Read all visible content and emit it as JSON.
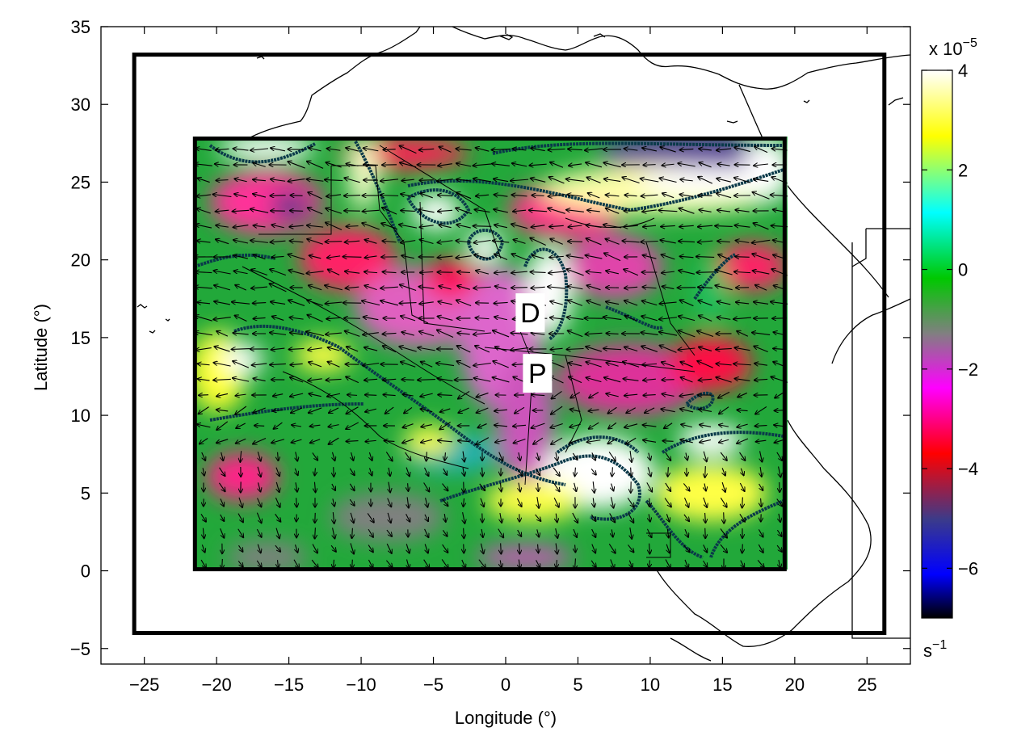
{
  "chart_data": {
    "type": "heatmap",
    "xlabel": "Longitude (°)",
    "ylabel": "Latitude (°)",
    "xlim": [
      -28,
      28
    ],
    "ylim": [
      -6,
      35
    ],
    "xticks": [
      -25,
      -20,
      -15,
      -10,
      -5,
      0,
      5,
      10,
      15,
      20,
      25
    ],
    "yticks": [
      -5,
      0,
      5,
      10,
      15,
      20,
      25,
      30,
      35
    ],
    "outer_domain": {
      "lon": [
        -25.7,
        26.2
      ],
      "lat": [
        -4,
        33.2
      ]
    },
    "inner_domain": {
      "lon": [
        -21.5,
        19.3
      ],
      "lat": [
        0.1,
        27.8
      ]
    },
    "annotations": [
      {
        "text": "D",
        "lon": 1.7,
        "lat": 16.6
      },
      {
        "text": "P",
        "lon": 2.2,
        "lat": 12.7
      }
    ],
    "colorbar": {
      "min": -7,
      "max": 4,
      "ticks": [
        4,
        2,
        0,
        -2,
        -4,
        -6
      ],
      "exponent_label": "x 10",
      "exponent": "−5",
      "unit": "s",
      "unit_exp": "−1",
      "colors": [
        "#000000",
        "#0000ff",
        "#3b3b8a",
        "#ff0000",
        "#ff00ff",
        "#808080",
        "#00c800",
        "#00ffff",
        "#ffff00",
        "#ffffff"
      ]
    },
    "grid": false
  }
}
